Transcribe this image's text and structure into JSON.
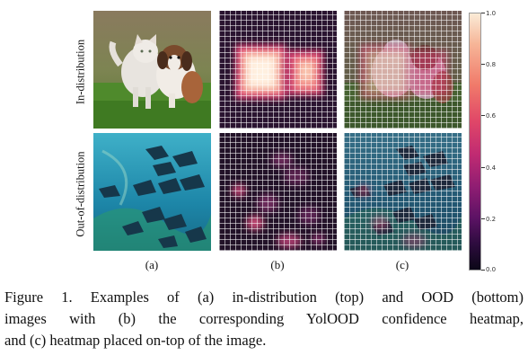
{
  "row_labels": {
    "top": "In-distribution",
    "bottom": "Out-of-distribution"
  },
  "column_labels": {
    "a": "(a)",
    "b": "(b)",
    "c": "(c)"
  },
  "colorbar": {
    "ticks": [
      "1.0",
      "0.8",
      "0.6",
      "0.4",
      "0.2",
      "0.0"
    ]
  },
  "caption": {
    "line1": "Figure 1. Examples of (a) in-distribution (top) and OOD (bottom)",
    "line2": "images with (b) the corresponding YolOOD confidence heatmap,",
    "line3": "and (c) heatmap placed on-top of the image."
  }
}
